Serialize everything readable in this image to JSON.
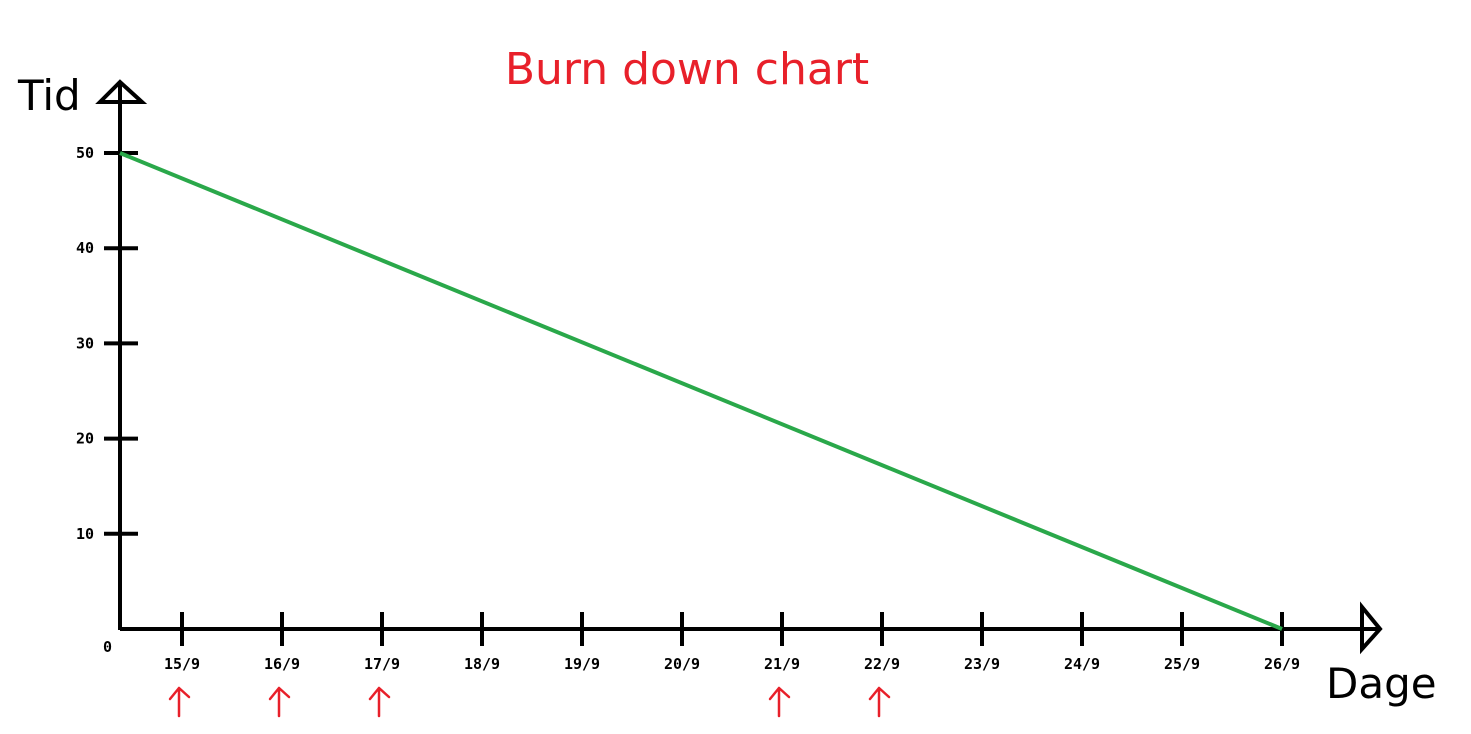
{
  "chart_data": {
    "type": "line",
    "title": "Burn down chart",
    "xlabel": "Dage",
    "ylabel": "Tid",
    "x_categories": [
      "15/9",
      "16/9",
      "17/9",
      "18/9",
      "19/9",
      "20/9",
      "21/9",
      "22/9",
      "23/9",
      "24/9",
      "25/9",
      "26/9"
    ],
    "y_ticks": [
      10,
      20,
      30,
      40,
      50
    ],
    "origin_label": "0",
    "ylim": [
      0,
      50
    ],
    "grid": false,
    "legend": "none",
    "series": [
      {
        "color": "#2aa84a",
        "points": [
          {
            "x": "start",
            "y": 50
          },
          {
            "x": "26/9",
            "y": 0
          }
        ]
      }
    ],
    "annotations": {
      "marked_days": [
        "15/9",
        "16/9",
        "17/9",
        "21/9",
        "22/9"
      ],
      "marker_color": "#e8202a",
      "marker_icon": "up-arrow-icon"
    }
  }
}
